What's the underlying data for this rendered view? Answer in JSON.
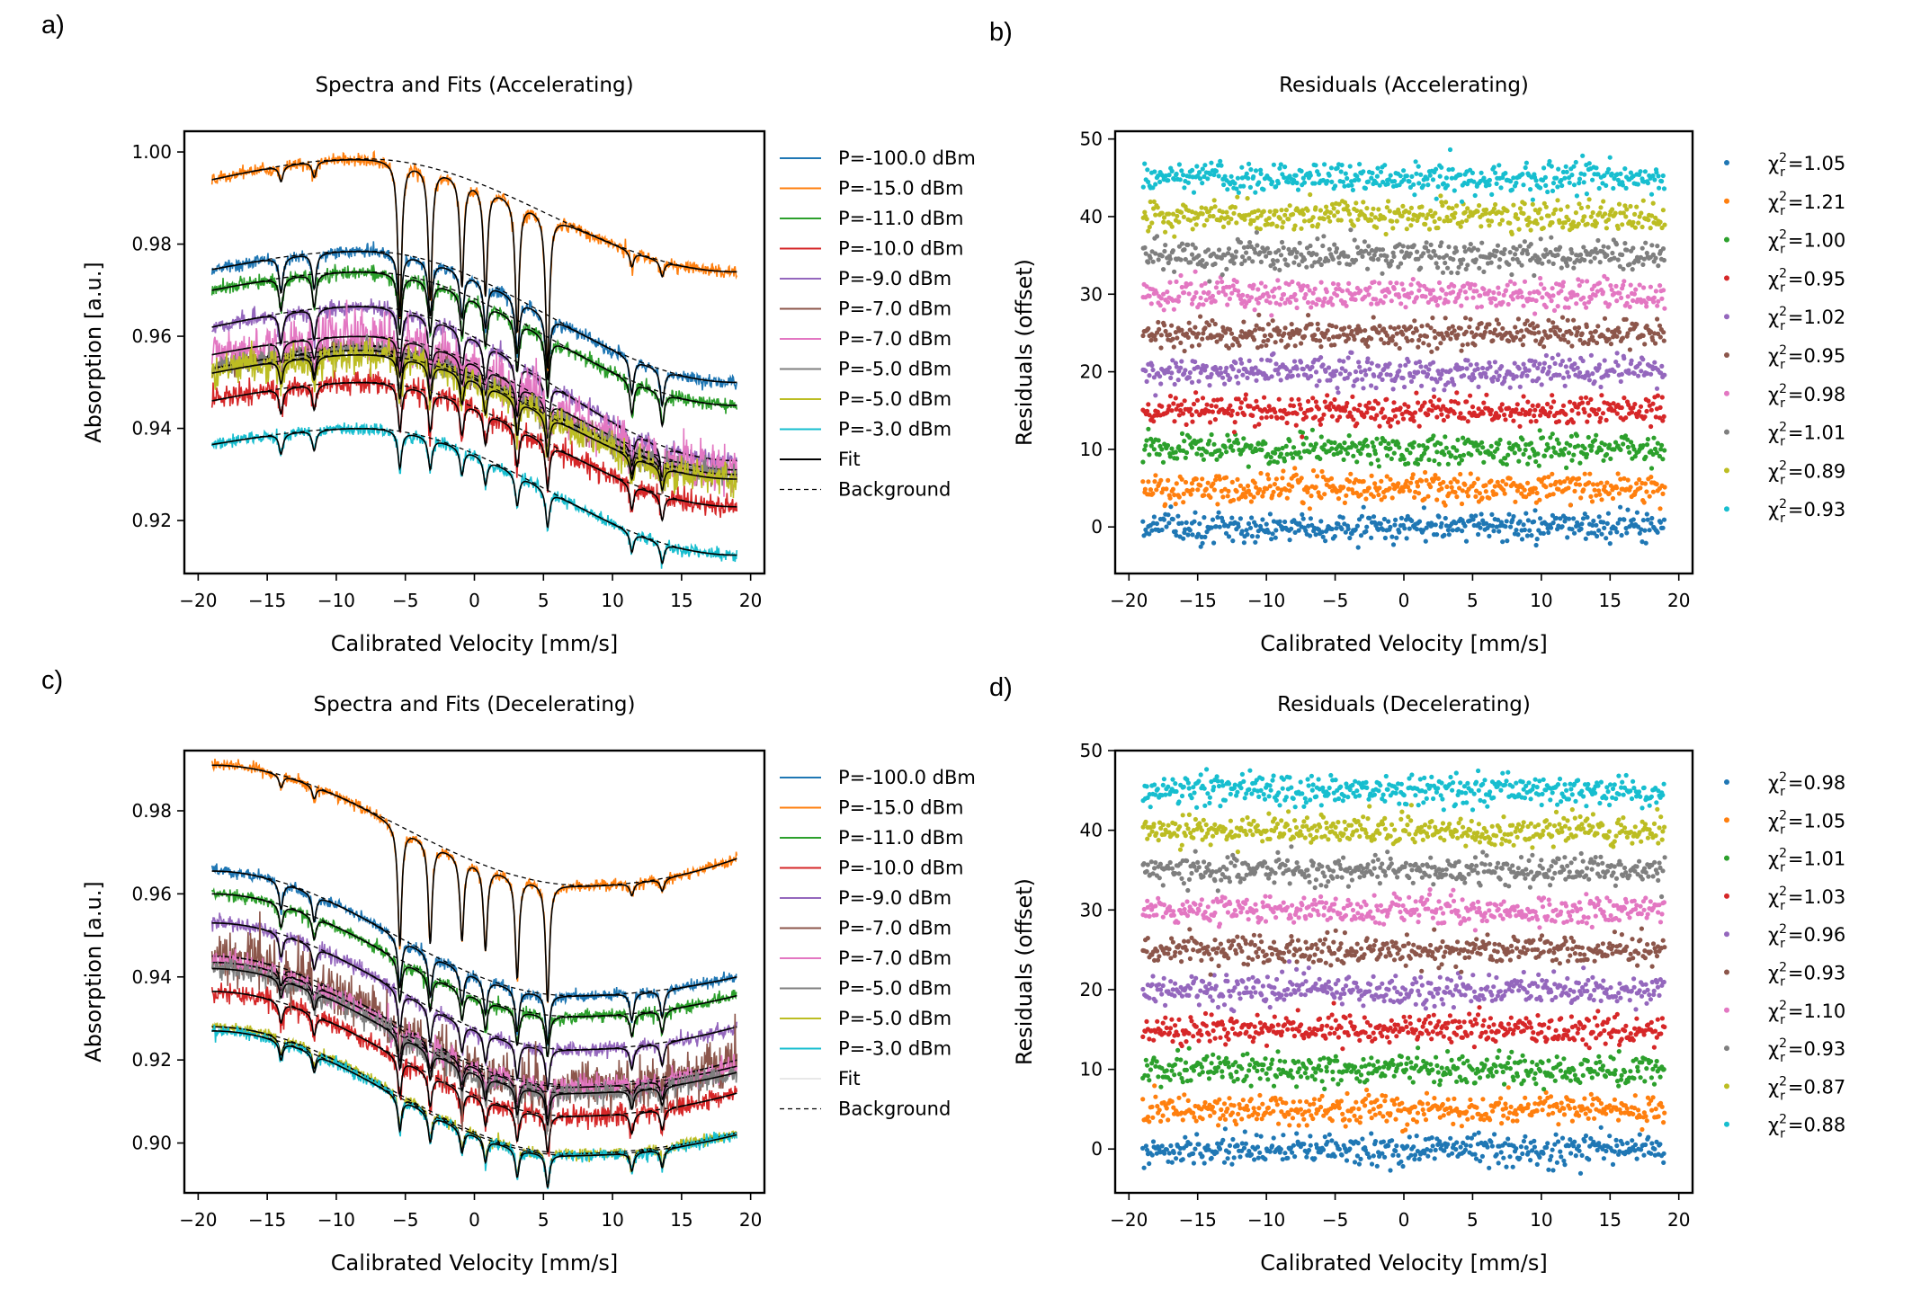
{
  "panel_labels": [
    "a)",
    "b)",
    "c)",
    "d)"
  ],
  "colors": {
    "series": [
      "#1f77b4",
      "#ff7f0e",
      "#2ca02c",
      "#d62728",
      "#9467bd",
      "#8c564b",
      "#e377c2",
      "#7f7f7f",
      "#bcbd22",
      "#17becf"
    ],
    "fit": "#000000",
    "background": "#000000"
  },
  "chart_data": [
    {
      "type": "line",
      "title": "Spectra and Fits (Accelerating)",
      "xlabel": "Calibrated Velocity [mm/s]",
      "ylabel": "Absorption [a.u.]",
      "xlim": [
        -21,
        21
      ],
      "ylim": [
        0.9085,
        1.0045
      ],
      "xticks": [
        -20,
        -15,
        -10,
        -5,
        0,
        5,
        10,
        15,
        20
      ],
      "xtick_labels": [
        "−20",
        "−15",
        "−10",
        "−5",
        "0",
        "5",
        "10",
        "15",
        "20"
      ],
      "yticks": [
        0.92,
        0.94,
        0.96,
        0.98,
        1.0
      ],
      "ytick_labels": [
        "0.92",
        "0.94",
        "0.96",
        "0.98",
        "1.00"
      ],
      "legend_position": "outside-right",
      "legend": [
        "P=-100.0 dBm",
        "P=-15.0 dBm",
        "P=-11.0 dBm",
        "P=-10.0 dBm",
        "P=-9.0 dBm",
        "P=-7.0 dBm",
        "P=-7.0 dBm",
        "P=-5.0 dBm",
        "P=-5.0 dBm",
        "P=-3.0 dBm",
        "Fit",
        "Background"
      ],
      "x_range": [
        -19,
        19
      ],
      "dip_positions": [
        -14.0,
        -11.6,
        -5.4,
        -3.2,
        -0.9,
        0.8,
        3.1,
        5.3,
        11.4,
        13.6
      ],
      "series": [
        {
          "name": "P=-100.0 dBm",
          "start": 0.9745,
          "peak": 0.9785,
          "end": 0.95,
          "peak_x": -8,
          "noise": 0.0007,
          "dip_depth": 0.014
        },
        {
          "name": "P=-15.0 dBm",
          "start": 0.994,
          "peak": 0.9985,
          "end": 0.974,
          "peak_x": -8,
          "noise": 0.0007,
          "dip_depth": 0.028
        },
        {
          "name": "P=-11.0 dBm",
          "start": 0.97,
          "peak": 0.974,
          "end": 0.945,
          "peak_x": -8,
          "noise": 0.0008,
          "dip_depth": 0.013
        },
        {
          "name": "P=-10.0 dBm",
          "start": 0.946,
          "peak": 0.95,
          "end": 0.923,
          "peak_x": -8,
          "noise": 0.0012,
          "dip_depth": 0.01
        },
        {
          "name": "P=-9.0 dBm",
          "start": 0.962,
          "peak": 0.9665,
          "end": 0.933,
          "peak_x": -8,
          "noise": 0.0009,
          "dip_depth": 0.012
        },
        {
          "name": "P=-7.0 dBm",
          "start": 0.953,
          "peak": 0.958,
          "end": 0.93,
          "peak_x": -8,
          "noise": 0.0013,
          "dip_depth": 0.01
        },
        {
          "name": "P=-7.0 dBm",
          "start": 0.956,
          "peak": 0.96,
          "end": 0.931,
          "peak_x": -8,
          "noise": 0.0025,
          "dip_depth": 0.008
        },
        {
          "name": "P=-5.0 dBm",
          "start": 0.953,
          "peak": 0.957,
          "end": 0.93,
          "peak_x": -8,
          "noise": 0.0012,
          "dip_depth": 0.009
        },
        {
          "name": "P=-5.0 dBm",
          "start": 0.952,
          "peak": 0.956,
          "end": 0.929,
          "peak_x": -8,
          "noise": 0.0018,
          "dip_depth": 0.009
        },
        {
          "name": "P=-3.0 dBm",
          "start": 0.9365,
          "peak": 0.94,
          "end": 0.9125,
          "peak_x": -8,
          "noise": 0.0007,
          "dip_depth": 0.008
        }
      ]
    },
    {
      "type": "scatter",
      "title": "Residuals (Accelerating)",
      "xlabel": "Calibrated Velocity [mm/s]",
      "ylabel": "Residuals (offset)",
      "xlim": [
        -21,
        21
      ],
      "ylim": [
        -6,
        51
      ],
      "xticks": [
        -20,
        -15,
        -10,
        -5,
        0,
        5,
        10,
        15,
        20
      ],
      "xtick_labels": [
        "−20",
        "−15",
        "−10",
        "−5",
        "0",
        "5",
        "10",
        "15",
        "20"
      ],
      "yticks": [
        0,
        10,
        20,
        30,
        40,
        50
      ],
      "ytick_labels": [
        "0",
        "10",
        "20",
        "30",
        "40",
        "50"
      ],
      "legend_position": "outside-right",
      "offsets": [
        0,
        5,
        10,
        15,
        20,
        25,
        30,
        35,
        40,
        45
      ],
      "noise_sigma": 1.0,
      "x_range": [
        -19,
        19
      ],
      "chi2": [
        "1.05",
        "1.21",
        "1.00",
        "0.95",
        "1.02",
        "0.95",
        "0.98",
        "1.01",
        "0.89",
        "0.93"
      ]
    },
    {
      "type": "line",
      "title": "Spectra and Fits (Decelerating)",
      "xlabel": "Calibrated Velocity [mm/s]",
      "ylabel": "Absorption [a.u.]",
      "xlim": [
        -21,
        21
      ],
      "ylim": [
        0.888,
        0.9945
      ],
      "xticks": [
        -20,
        -15,
        -10,
        -5,
        0,
        5,
        10,
        15,
        20
      ],
      "xtick_labels": [
        "−20",
        "−15",
        "−10",
        "−5",
        "0",
        "5",
        "10",
        "15",
        "20"
      ],
      "yticks": [
        0.9,
        0.92,
        0.94,
        0.96,
        0.98
      ],
      "ytick_labels": [
        "0.90",
        "0.92",
        "0.94",
        "0.96",
        "0.98"
      ],
      "legend_position": "outside-right",
      "legend": [
        "P=-100.0 dBm",
        "P=-15.0 dBm",
        "P=-11.0 dBm",
        "P=-10.0 dBm",
        "P=-9.0 dBm",
        "P=-7.0 dBm",
        "P=-7.0 dBm",
        "P=-5.0 dBm",
        "P=-5.0 dBm",
        "P=-3.0 dBm",
        "Fit",
        "Background"
      ],
      "x_range": [
        -19,
        19
      ],
      "dip_positions": [
        -14.0,
        -11.6,
        -5.4,
        -3.2,
        -0.9,
        0.8,
        3.1,
        5.3,
        11.4,
        13.6
      ],
      "series": [
        {
          "name": "P=-100.0 dBm",
          "start": 0.9655,
          "valley": 0.9355,
          "end": 0.94,
          "valley_x": 7,
          "noise": 0.0007,
          "dip_depth": 0.012
        },
        {
          "name": "P=-15.0 dBm",
          "start": 0.991,
          "valley": 0.962,
          "end": 0.9685,
          "valley_x": 8,
          "noise": 0.0007,
          "dip_depth": 0.025
        },
        {
          "name": "P=-11.0 dBm",
          "start": 0.96,
          "valley": 0.9305,
          "end": 0.9355,
          "valley_x": 7,
          "noise": 0.0008,
          "dip_depth": 0.01
        },
        {
          "name": "P=-10.0 dBm",
          "start": 0.9365,
          "valley": 0.9065,
          "end": 0.912,
          "valley_x": 7,
          "noise": 0.0012,
          "dip_depth": 0.009
        },
        {
          "name": "P=-9.0 dBm",
          "start": 0.953,
          "valley": 0.9225,
          "end": 0.928,
          "valley_x": 7,
          "noise": 0.0009,
          "dip_depth": 0.01
        },
        {
          "name": "P=-7.0 dBm",
          "start": 0.945,
          "valley": 0.914,
          "end": 0.92,
          "valley_x": 7,
          "noise": 0.0028,
          "dip_depth": 0.008
        },
        {
          "name": "P=-7.0 dBm",
          "start": 0.9435,
          "valley": 0.9135,
          "end": 0.9185,
          "valley_x": 7,
          "noise": 0.0014,
          "dip_depth": 0.008
        },
        {
          "name": "P=-5.0 dBm",
          "start": 0.942,
          "valley": 0.912,
          "end": 0.917,
          "valley_x": 7,
          "noise": 0.0013,
          "dip_depth": 0.008
        },
        {
          "name": "P=-5.0 dBm",
          "start": 0.928,
          "valley": 0.8975,
          "end": 0.9025,
          "valley_x": 7,
          "noise": 0.0007,
          "dip_depth": 0.008
        },
        {
          "name": "P=-3.0 dBm",
          "start": 0.927,
          "valley": 0.897,
          "end": 0.902,
          "valley_x": 7,
          "noise": 0.0007,
          "dip_depth": 0.008
        }
      ]
    },
    {
      "type": "scatter",
      "title": "Residuals (Decelerating)",
      "xlabel": "Calibrated Velocity [mm/s]",
      "ylabel": "Residuals (offset)",
      "xlim": [
        -21,
        21
      ],
      "ylim": [
        -5.5,
        50
      ],
      "xticks": [
        -20,
        -15,
        -10,
        -5,
        0,
        5,
        10,
        15,
        20
      ],
      "xtick_labels": [
        "−20",
        "−15",
        "−10",
        "−5",
        "0",
        "5",
        "10",
        "15",
        "20"
      ],
      "yticks": [
        0,
        10,
        20,
        30,
        40,
        50
      ],
      "ytick_labels": [
        "0",
        "10",
        "20",
        "30",
        "40",
        "50"
      ],
      "legend_position": "outside-right",
      "offsets": [
        0,
        5,
        10,
        15,
        20,
        25,
        30,
        35,
        40,
        45
      ],
      "noise_sigma": 1.0,
      "x_range": [
        -19,
        19
      ],
      "chi2": [
        "0.98",
        "1.05",
        "1.01",
        "1.03",
        "0.96",
        "0.93",
        "1.10",
        "0.93",
        "0.87",
        "0.88"
      ]
    }
  ]
}
